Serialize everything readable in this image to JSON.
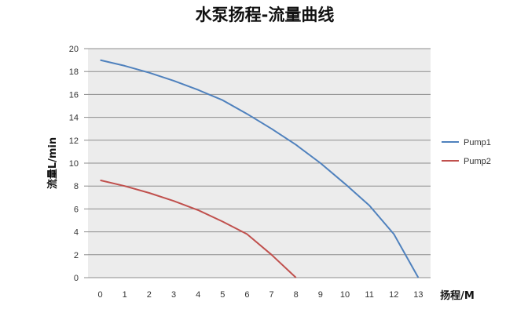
{
  "chart_data": {
    "type": "line",
    "title": "水泵扬程-流量曲线",
    "xlabel": "扬程/M",
    "ylabel": "流量L/min",
    "x": [
      0,
      1,
      2,
      3,
      4,
      5,
      6,
      7,
      8,
      9,
      10,
      11,
      12,
      13
    ],
    "xlim": [
      0,
      13
    ],
    "ylim": [
      0,
      20
    ],
    "yticks": [
      0,
      2,
      4,
      6,
      8,
      10,
      12,
      14,
      16,
      18,
      20
    ],
    "grid": true,
    "legend_position": "right",
    "series": [
      {
        "name": "Pump1",
        "color": "#4f81bd",
        "points": [
          [
            0,
            19.0
          ],
          [
            1,
            18.5
          ],
          [
            2,
            17.9
          ],
          [
            3,
            17.2
          ],
          [
            4,
            16.4
          ],
          [
            5,
            15.5
          ],
          [
            6,
            14.3
          ],
          [
            7,
            13.0
          ],
          [
            8,
            11.6
          ],
          [
            9,
            10.0
          ],
          [
            10,
            8.2
          ],
          [
            11,
            6.3
          ],
          [
            12,
            3.8
          ],
          [
            13,
            0
          ]
        ]
      },
      {
        "name": "Pump2",
        "color": "#c0504d",
        "points": [
          [
            0,
            8.5
          ],
          [
            1,
            8.0
          ],
          [
            2,
            7.4
          ],
          [
            3,
            6.7
          ],
          [
            4,
            5.9
          ],
          [
            5,
            4.9
          ],
          [
            6,
            3.8
          ],
          [
            7,
            2.0
          ],
          [
            8,
            0
          ]
        ]
      }
    ],
    "plot_background": "#ececec",
    "grid_color": "#8c8c8c"
  }
}
